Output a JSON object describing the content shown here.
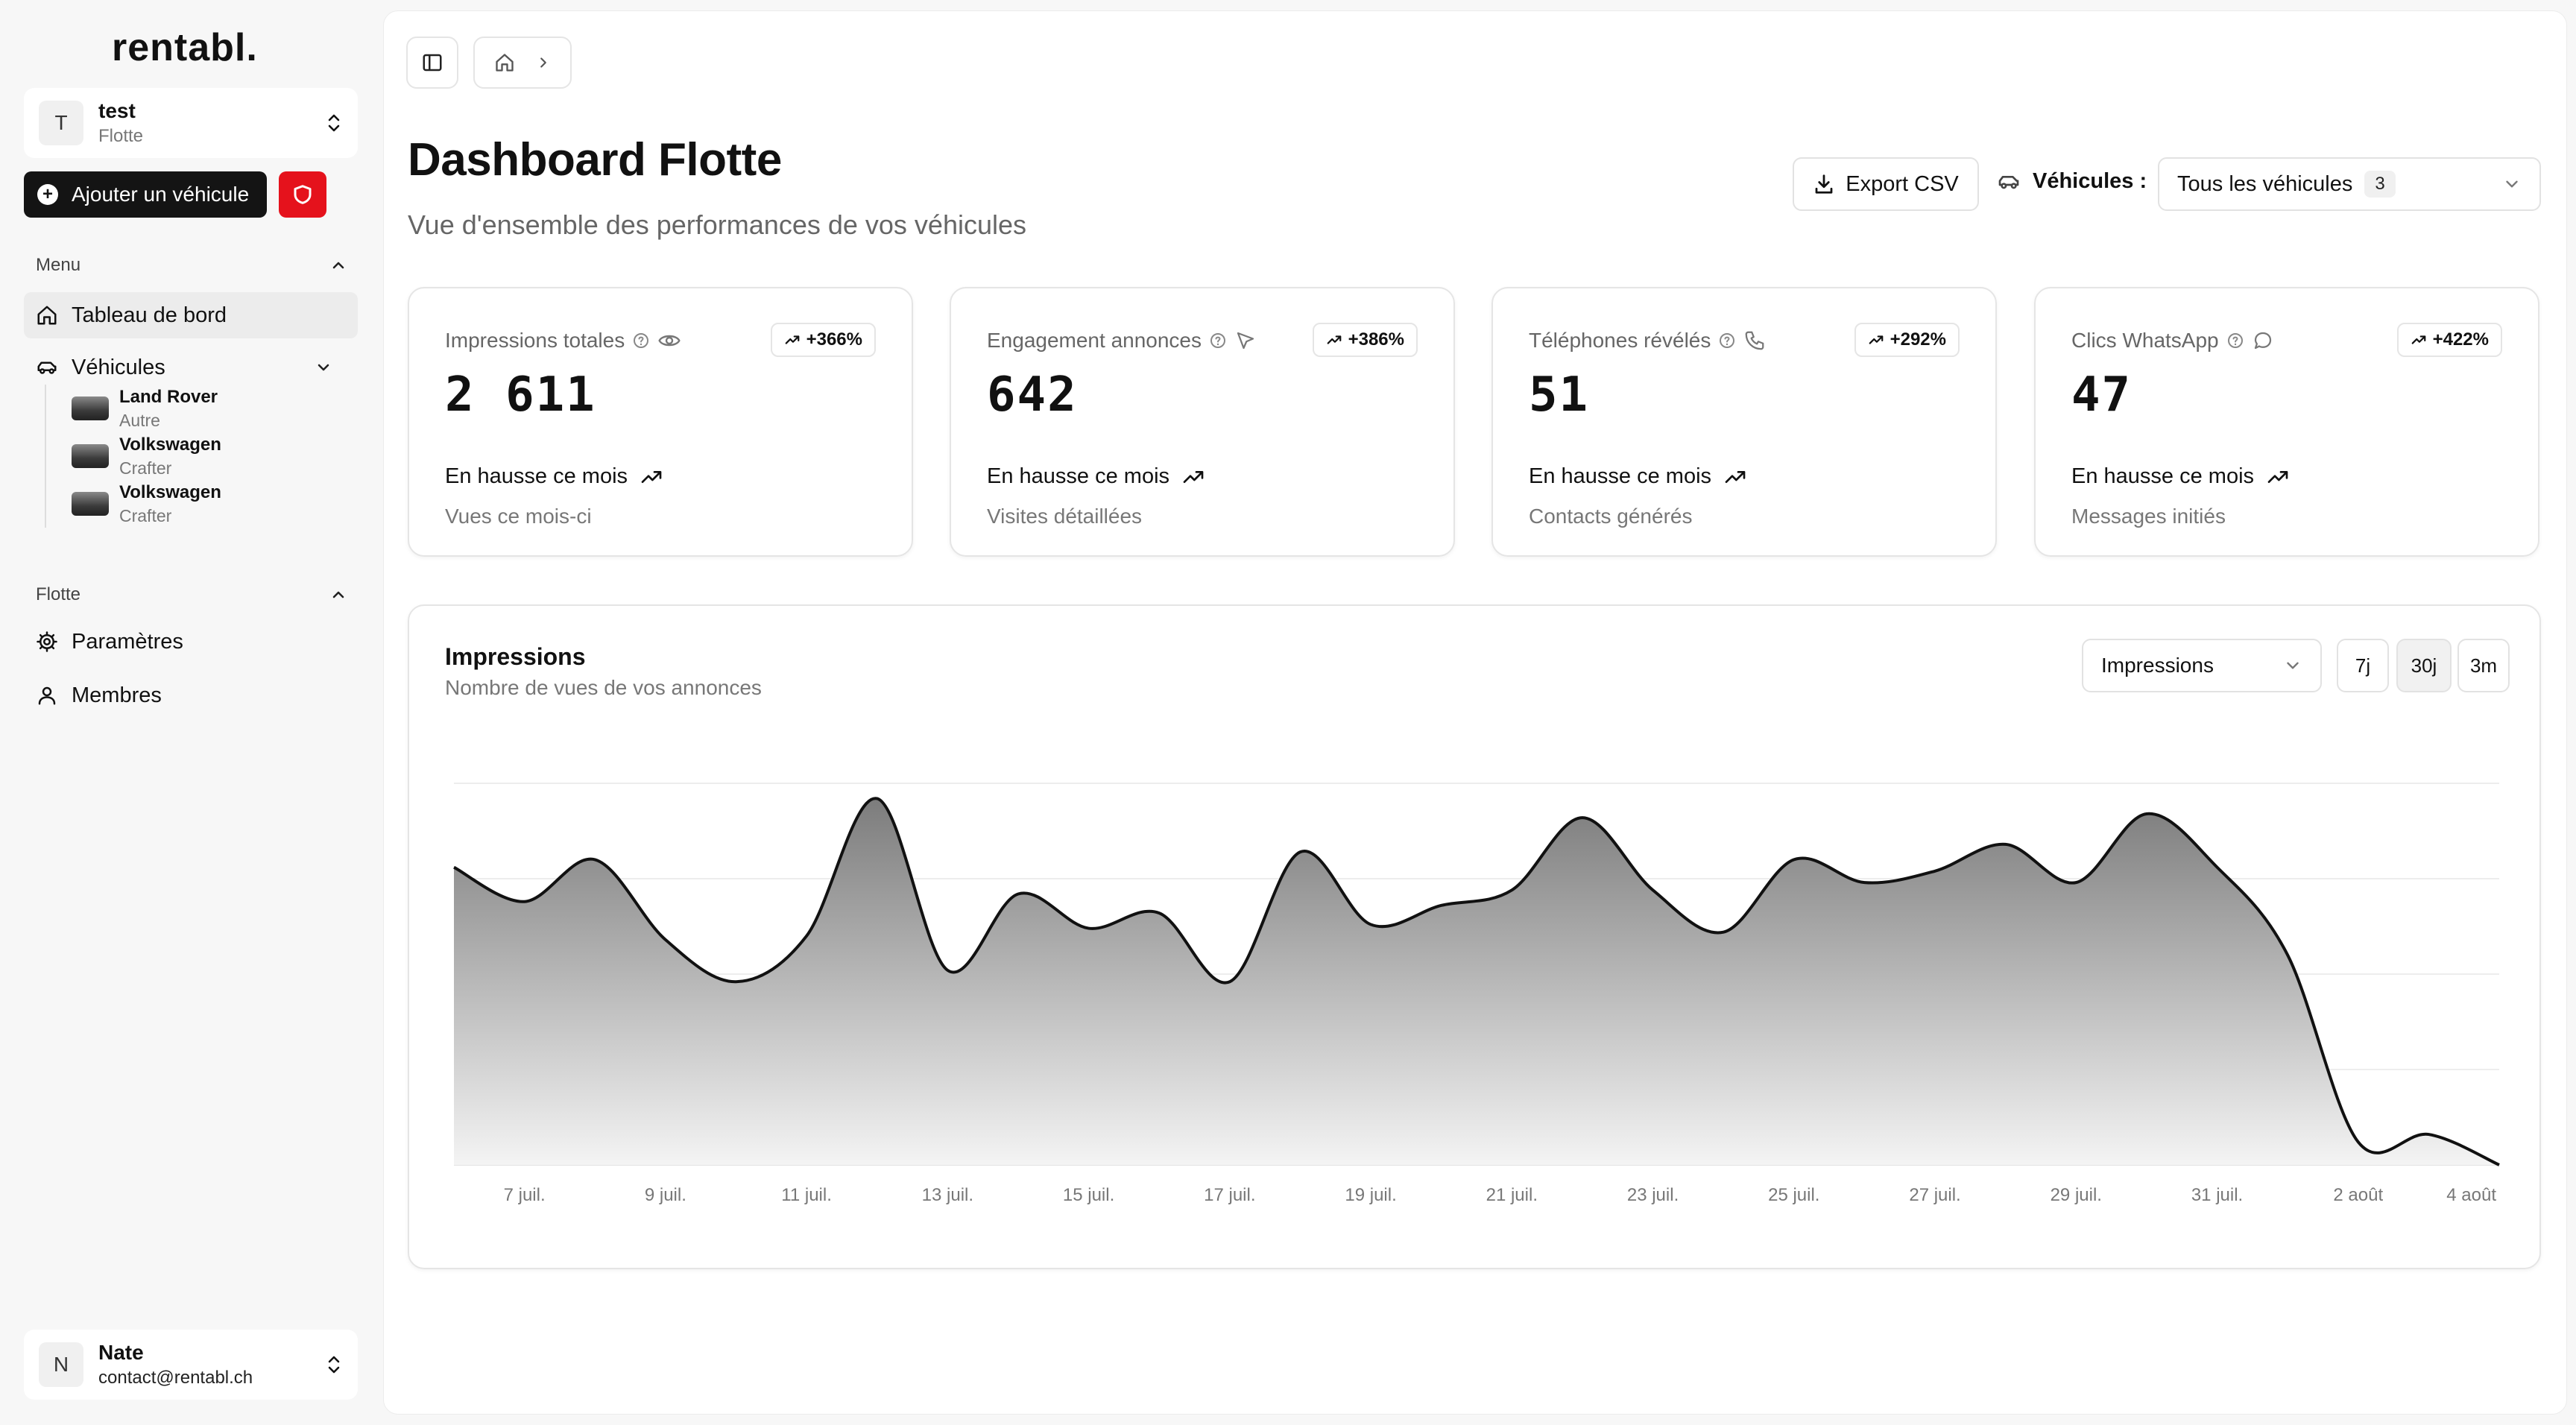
{
  "brand": {
    "logo": "rentabl."
  },
  "org": {
    "initial": "T",
    "name": "test",
    "sub": "Flotte"
  },
  "sidebar": {
    "add_vehicle": "Ajouter un véhicule",
    "menu_heading": "Menu",
    "nav_dashboard": "Tableau de bord",
    "nav_vehicles": "Véhicules",
    "vehicles": [
      {
        "name": "Land Rover",
        "type": "Autre"
      },
      {
        "name": "Volkswagen",
        "type": "Crafter"
      },
      {
        "name": "Volkswagen",
        "type": "Crafter"
      }
    ],
    "fleet_heading": "Flotte",
    "nav_settings": "Paramètres",
    "nav_members": "Membres"
  },
  "user": {
    "initial": "N",
    "name": "Nate",
    "email": "contact@rentabl.ch"
  },
  "header": {
    "title": "Dashboard Flotte",
    "subtitle": "Vue d'ensemble des performances de vos véhicules",
    "export_label": "Export CSV",
    "vehicles_label": "Véhicules :",
    "vehicles_select": "Tous les véhicules",
    "vehicles_count": "3"
  },
  "kpis": [
    {
      "label": "Impressions totales",
      "badge": "+366%",
      "value": "2 611",
      "trend": "En hausse ce mois",
      "foot": "Vues ce mois-ci"
    },
    {
      "label": "Engagement annonces",
      "badge": "+386%",
      "value": "642",
      "trend": "En hausse ce mois",
      "foot": "Visites détaillées"
    },
    {
      "label": "Téléphones révélés",
      "badge": "+292%",
      "value": "51",
      "trend": "En hausse ce mois",
      "foot": "Contacts générés"
    },
    {
      "label": "Clics WhatsApp",
      "badge": "+422%",
      "value": "47",
      "trend": "En hausse ce mois",
      "foot": "Messages initiés"
    }
  ],
  "chart": {
    "title": "Impressions",
    "subtitle": "Nombre de vues de vos annonces",
    "metric": "Impressions",
    "ranges": [
      "7j",
      "30j",
      "3m"
    ],
    "active_range": "30j"
  },
  "chart_data": {
    "type": "area",
    "title": "Impressions",
    "xlabel": "",
    "ylabel": "",
    "ylim": [
      0,
      100
    ],
    "grid": true,
    "x_ticks": [
      "7 juil.",
      "9 juil.",
      "11 juil.",
      "13 juil.",
      "15 juil.",
      "17 juil.",
      "19 juil.",
      "21 juil.",
      "23 juil.",
      "25 juil.",
      "27 juil.",
      "29 juil.",
      "31 juil.",
      "2 août",
      "4 août"
    ],
    "x": [
      "6 juil.",
      "7 juil.",
      "8 juil.",
      "9 juil.",
      "10 juil.",
      "11 juil.",
      "12 juil.",
      "13 juil.",
      "14 juil.",
      "15 juil.",
      "16 juil.",
      "17 juil.",
      "18 juil.",
      "19 juil.",
      "20 juil.",
      "21 juil.",
      "22 juil.",
      "23 juil.",
      "24 juil.",
      "25 juil.",
      "26 juil.",
      "27 juil.",
      "28 juil.",
      "29 juil.",
      "30 juil.",
      "31 juil.",
      "1 août",
      "2 août",
      "3 août",
      "4 août"
    ],
    "series": [
      {
        "name": "Impressions",
        "values": [
          78,
          69,
          80,
          59,
          48,
          60,
          96,
          51,
          71,
          62,
          66,
          48,
          82,
          63,
          68,
          72,
          91,
          72,
          61,
          80,
          74,
          77,
          84,
          74,
          92,
          78,
          55,
          6,
          8,
          0
        ]
      }
    ]
  }
}
